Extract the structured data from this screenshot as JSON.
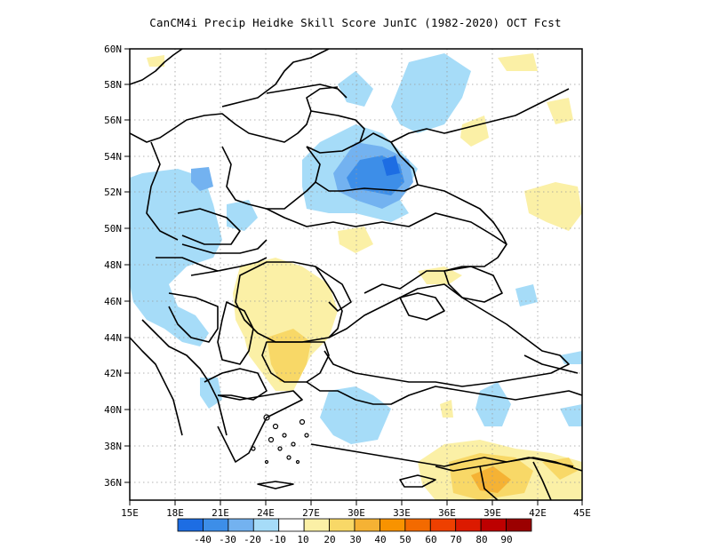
{
  "title": "CanCM4i Precip Heidke Skill Score JunIC (1982-2020) OCT Fcst",
  "map": {
    "lon_range": [
      15,
      45
    ],
    "lat_range": [
      35,
      60
    ],
    "lat_ticks": [
      "60N",
      "58N",
      "56N",
      "54N",
      "52N",
      "50N",
      "48N",
      "46N",
      "44N",
      "42N",
      "40N",
      "38N",
      "36N"
    ],
    "lat_values": [
      60,
      58,
      56,
      54,
      52,
      50,
      48,
      46,
      44,
      42,
      40,
      38,
      36
    ],
    "lon_ticks": [
      "15E",
      "18E",
      "21E",
      "24E",
      "27E",
      "30E",
      "33E",
      "36E",
      "39E",
      "42E",
      "45E"
    ],
    "lon_values": [
      15,
      18,
      21,
      24,
      27,
      30,
      33,
      36,
      39,
      42,
      45
    ],
    "gridlines": "dotted"
  },
  "colorbar": {
    "colors": [
      "#1d6de3",
      "#3d8ee8",
      "#73b2f0",
      "#a6dcf8",
      "#ffffff",
      "#fbf0a6",
      "#f8d867",
      "#f5b234",
      "#f89300",
      "#f36a00",
      "#ee4000",
      "#dc1a00",
      "#bd0000",
      "#9b0000"
    ],
    "labels": [
      "-40",
      "-30",
      "-20",
      "-10",
      "10",
      "20",
      "30",
      "40",
      "50",
      "60",
      "70",
      "80",
      "90"
    ]
  },
  "skill_regions": [
    {
      "name": "belarus-negative",
      "level": -30
    },
    {
      "name": "belarus-core",
      "level": -40
    },
    {
      "name": "romania-positive",
      "level": 10
    },
    {
      "name": "bulgaria-positive",
      "level": 20
    },
    {
      "name": "east-turkey-positive",
      "level": 10
    },
    {
      "name": "east-turkey-core",
      "level": 30
    }
  ]
}
